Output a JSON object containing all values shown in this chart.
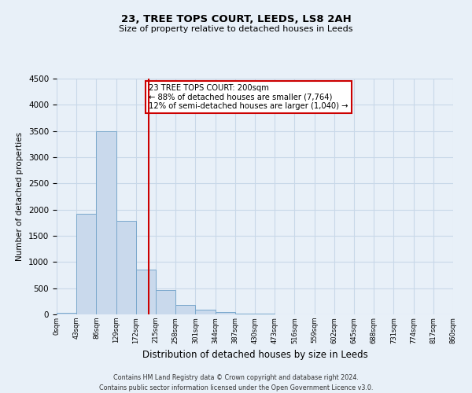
{
  "title": "23, TREE TOPS COURT, LEEDS, LS8 2AH",
  "subtitle": "Size of property relative to detached houses in Leeds",
  "xlabel": "Distribution of detached houses by size in Leeds",
  "ylabel": "Number of detached properties",
  "bin_edges": [
    0,
    43,
    86,
    129,
    172,
    215,
    258,
    301,
    344,
    387,
    430,
    473,
    516,
    559,
    602,
    645,
    688,
    731,
    774,
    817,
    860
  ],
  "bar_heights": [
    30,
    1920,
    3500,
    1790,
    860,
    460,
    175,
    95,
    45,
    20,
    10,
    0,
    0,
    0,
    0,
    0,
    0,
    0,
    0,
    0
  ],
  "bar_facecolor": "#c9d9ec",
  "bar_edgecolor": "#7aa8cc",
  "grid_color": "#c8d8e8",
  "background_color": "#e8f0f8",
  "vline_x": 200,
  "vline_color": "#cc0000",
  "annotation_text": "23 TREE TOPS COURT: 200sqm\n← 88% of detached houses are smaller (7,764)\n12% of semi-detached houses are larger (1,040) →",
  "annotation_box_edgecolor": "#cc0000",
  "annotation_box_facecolor": "#ffffff",
  "ylim": [
    0,
    4500
  ],
  "yticks": [
    0,
    500,
    1000,
    1500,
    2000,
    2500,
    3000,
    3500,
    4000,
    4500
  ],
  "tick_labels": [
    "0sqm",
    "43sqm",
    "86sqm",
    "129sqm",
    "172sqm",
    "215sqm",
    "258sqm",
    "301sqm",
    "344sqm",
    "387sqm",
    "430sqm",
    "473sqm",
    "516sqm",
    "559sqm",
    "602sqm",
    "645sqm",
    "688sqm",
    "731sqm",
    "774sqm",
    "817sqm",
    "860sqm"
  ],
  "footer_line1": "Contains HM Land Registry data © Crown copyright and database right 2024.",
  "footer_line2": "Contains public sector information licensed under the Open Government Licence v3.0."
}
